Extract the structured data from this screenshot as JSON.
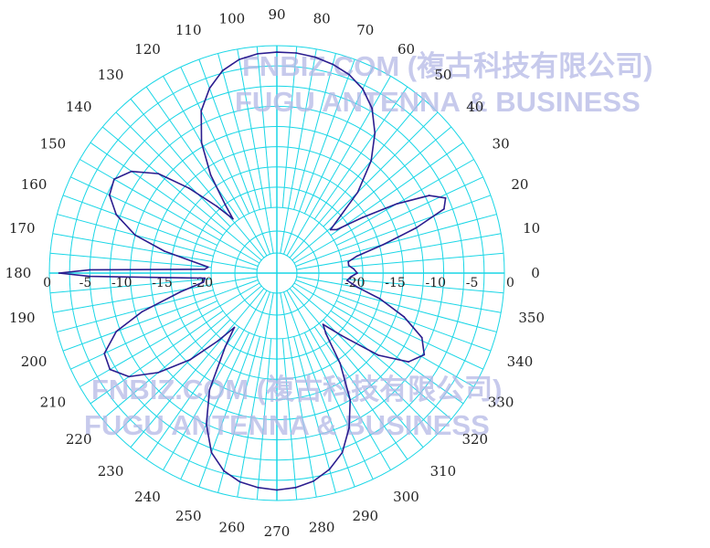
{
  "chart_data": {
    "type": "polar",
    "angle_unit": "deg",
    "angle_tick_labels": [
      "0",
      "10",
      "20",
      "30",
      "40",
      "50",
      "60",
      "70",
      "80",
      "90",
      "100",
      "110",
      "120",
      "130",
      "140",
      "150",
      "160",
      "170",
      "180",
      "190",
      "200",
      "210",
      "220",
      "230",
      "240",
      "250",
      "260",
      "270",
      "280",
      "290",
      "300",
      "310",
      "320",
      "330",
      "340",
      "350"
    ],
    "radial_tick_labels": [
      "-20",
      "-15",
      "-10",
      "-5",
      "0"
    ],
    "radial_range": [
      -20,
      0
    ],
    "grid": true,
    "grid_color": "#19d6e6",
    "series": [
      {
        "color": "#2b1d8f",
        "points": [
          [
            0,
            -18.2
          ],
          [
            3,
            -18.6
          ],
          [
            6,
            -19.2
          ],
          [
            9,
            -19.2
          ],
          [
            12,
            -18.0
          ],
          [
            15,
            -14.5
          ],
          [
            18,
            -10.0
          ],
          [
            21,
            -6.0
          ],
          [
            24,
            -5.3
          ],
          [
            27,
            -7.0
          ],
          [
            30,
            -11.0
          ],
          [
            33,
            -15.5
          ],
          [
            36,
            -19.0
          ],
          [
            39,
            -19.6
          ],
          [
            42,
            -17.5
          ],
          [
            45,
            -14.0
          ],
          [
            50,
            -10.0
          ],
          [
            55,
            -7.0
          ],
          [
            60,
            -4.6
          ],
          [
            65,
            -3.0
          ],
          [
            70,
            -2.0
          ],
          [
            75,
            -1.4
          ],
          [
            80,
            -1.0
          ],
          [
            85,
            -0.8
          ],
          [
            90,
            -0.8
          ],
          [
            95,
            -0.9
          ],
          [
            100,
            -1.3
          ],
          [
            105,
            -2.2
          ],
          [
            110,
            -3.8
          ],
          [
            115,
            -6.0
          ],
          [
            120,
            -9.5
          ],
          [
            124,
            -13.5
          ],
          [
            127,
            -17.5
          ],
          [
            129,
            -19.5
          ],
          [
            132,
            -17.0
          ],
          [
            136,
            -13.0
          ],
          [
            140,
            -9.0
          ],
          [
            145,
            -6.2
          ],
          [
            150,
            -4.9
          ],
          [
            155,
            -5.3
          ],
          [
            160,
            -7.0
          ],
          [
            165,
            -10.0
          ],
          [
            169,
            -14.0
          ],
          [
            172,
            -17.5
          ],
          [
            175,
            -19.6
          ],
          [
            177,
            -19.2
          ],
          [
            179,
            -5.0
          ],
          [
            180,
            -1.2
          ],
          [
            181,
            -5.0
          ],
          [
            184,
            -19.2
          ],
          [
            187,
            -19.0
          ],
          [
            191,
            -16.0
          ],
          [
            196,
            -10.8
          ],
          [
            200,
            -7.0
          ],
          [
            205,
            -4.6
          ],
          [
            210,
            -4.3
          ],
          [
            215,
            -5.8
          ],
          [
            220,
            -9.0
          ],
          [
            225,
            -13.0
          ],
          [
            229,
            -17.0
          ],
          [
            232,
            -19.6
          ],
          [
            235,
            -17.0
          ],
          [
            240,
            -11.5
          ],
          [
            245,
            -7.5
          ],
          [
            250,
            -4.5
          ],
          [
            255,
            -2.8
          ],
          [
            260,
            -1.9
          ],
          [
            265,
            -1.5
          ],
          [
            270,
            -1.3
          ],
          [
            275,
            -1.5
          ],
          [
            280,
            -2.0
          ],
          [
            285,
            -3.0
          ],
          [
            290,
            -4.5
          ],
          [
            295,
            -7.0
          ],
          [
            300,
            -10.0
          ],
          [
            305,
            -14.5
          ],
          [
            309,
            -18.5
          ],
          [
            312,
            -19.6
          ],
          [
            316,
            -17.0
          ],
          [
            321,
            -12.0
          ],
          [
            326,
            -8.5
          ],
          [
            331,
            -7.3
          ],
          [
            336,
            -8.5
          ],
          [
            341,
            -11.5
          ],
          [
            346,
            -15.0
          ],
          [
            350,
            -18.0
          ],
          [
            354,
            -19.4
          ],
          [
            357,
            -19.0
          ],
          [
            360,
            -18.2
          ]
        ]
      }
    ]
  },
  "watermark": {
    "line1": "FNBIZ.COM (複古科技有限公司)",
    "line2": "FUGU ANTENNA & BUSINESS"
  }
}
